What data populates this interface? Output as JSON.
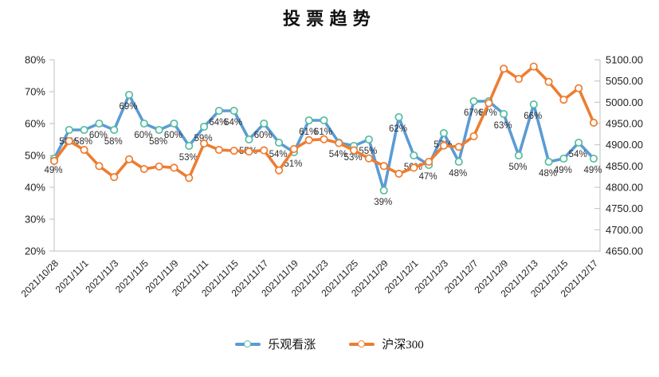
{
  "title": "投票趋势",
  "legend": [
    {
      "label": "乐观看涨",
      "line_color": "#5B9BD5",
      "marker_color": "#56BD9F"
    },
    {
      "label": "沪深300",
      "line_color": "#ED7D31",
      "marker_color": "#ED7D31"
    }
  ],
  "chart_data": {
    "type": "line",
    "title": "投票趋势",
    "n_points": 37,
    "legend_position": "bottom",
    "grid": false,
    "x_tick_labels": [
      "2021/10/28",
      "2021/11/1",
      "2021/11/3",
      "2021/11/5",
      "2021/11/9",
      "2021/11/11",
      "2021/11/15",
      "2021/11/17",
      "2021/11/19",
      "2021/11/23",
      "2021/11/25",
      "2021/11/29",
      "2021/12/1",
      "2021/12/3",
      "2021/12/7",
      "2021/12/9",
      "2021/12/13",
      "2021/12/15",
      "2021/12/17"
    ],
    "x_tick_point_indices": [
      0,
      2,
      4,
      6,
      8,
      10,
      12,
      14,
      16,
      18,
      20,
      22,
      24,
      26,
      28,
      30,
      32,
      34,
      36
    ],
    "left_axis": {
      "min": 20,
      "max": 80,
      "step": 10,
      "unit": "%",
      "tick_labels": [
        "80%",
        "70%",
        "60%",
        "50%",
        "40%",
        "30%",
        "20%"
      ]
    },
    "right_axis": {
      "min": 4650,
      "max": 5100,
      "step": 50,
      "tick_labels": [
        "5100.00",
        "5050.00",
        "5000.00",
        "4950.00",
        "4900.00",
        "4850.00",
        "4800.00",
        "4750.00",
        "4700.00",
        "4650.00"
      ]
    },
    "series": [
      {
        "name": "乐观看涨",
        "axis": "left",
        "unit": "%",
        "line_color": "#5B9BD5",
        "marker_color": "#56BD9F",
        "data_labels_visible": true,
        "values": [
          49,
          58,
          58,
          60,
          58,
          69,
          60,
          58,
          60,
          53,
          59,
          64,
          64,
          55,
          60,
          54,
          51,
          61,
          61,
          54,
          53,
          55,
          39,
          62,
          50,
          47,
          57,
          48,
          67,
          67,
          63,
          50,
          66,
          48,
          49,
          54,
          49
        ],
        "data_labels": [
          "49%",
          "58%",
          "58%",
          "60%",
          "58%",
          "69%",
          "60%",
          "58%",
          "60%",
          "53%",
          "59%",
          "64%",
          "64%",
          "55%",
          "60%",
          "54%",
          "51%",
          "61%",
          "61%",
          "54%",
          "53%",
          "55%",
          "39%",
          "62%",
          "50%",
          "47%",
          "57%",
          "48%",
          "67%",
          "67%",
          "63%",
          "50%",
          "66%",
          "48%",
          "49%",
          "54%",
          "49%"
        ]
      },
      {
        "name": "沪深300",
        "axis": "right",
        "data_labels_visible": false,
        "line_color": "#ED7D31",
        "marker_color": "#ED7D31",
        "values_estimated_from_pixels": true,
        "values": [
          4862,
          4909,
          4888,
          4850,
          4824,
          4866,
          4843,
          4849,
          4846,
          4822,
          4903,
          4888,
          4886,
          4884,
          4887,
          4840,
          4890,
          4911,
          4913,
          4904,
          4887,
          4868,
          4850,
          4832,
          4846,
          4860,
          4898,
          4895,
          4920,
          4998,
          5079,
          5055,
          5084,
          5048,
          5006,
          5033,
          4952
        ]
      }
    ]
  }
}
